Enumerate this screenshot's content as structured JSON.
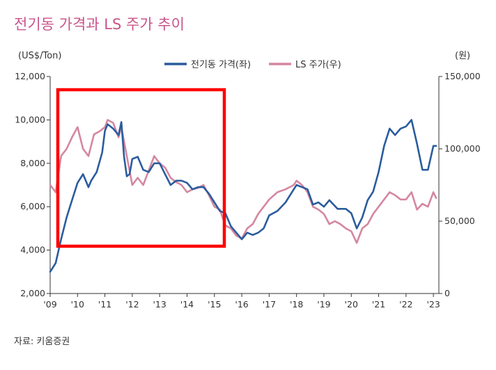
{
  "chart_data": {
    "type": "line",
    "title": "전기동 가격과 LS 주가 추이",
    "y_left_unit": "(US$/Ton)",
    "y_right_unit": "(원)",
    "source": "자료: 키움증권",
    "x_ticks": [
      "'09",
      "'10",
      "'11",
      "'12",
      "'13",
      "'14",
      "'15",
      "'16",
      "'17",
      "'18",
      "'19",
      "'20",
      "'21",
      "'22",
      "'23"
    ],
    "x_range": [
      2009.0,
      2023.2
    ],
    "y_left_ticks": [
      "2,000",
      "4,000",
      "6,000",
      "8,000",
      "10,000",
      "12,000"
    ],
    "y_left_range": [
      2000,
      12000
    ],
    "y_right_ticks": [
      "0",
      "50,000",
      "100,000",
      "150,000"
    ],
    "y_right_range": [
      0,
      150000
    ],
    "legend_position": "top-center",
    "series": [
      {
        "name": "전기동 가격(좌)",
        "axis": "left",
        "color": "#2b5c9e",
        "x": [
          2009.0,
          2009.2,
          2009.4,
          2009.6,
          2009.8,
          2010.0,
          2010.2,
          2010.4,
          2010.5,
          2010.7,
          2010.9,
          2011.0,
          2011.1,
          2011.3,
          2011.5,
          2011.6,
          2011.7,
          2011.8,
          2011.9,
          2012.0,
          2012.2,
          2012.4,
          2012.6,
          2012.8,
          2013.0,
          2013.2,
          2013.4,
          2013.6,
          2013.8,
          2014.0,
          2014.2,
          2014.4,
          2014.6,
          2014.8,
          2015.0,
          2015.2,
          2015.4,
          2015.6,
          2015.8,
          2016.0,
          2016.2,
          2016.4,
          2016.6,
          2016.8,
          2017.0,
          2017.3,
          2017.6,
          2017.9,
          2018.0,
          2018.2,
          2018.4,
          2018.6,
          2018.8,
          2019.0,
          2019.2,
          2019.5,
          2019.8,
          2020.0,
          2020.2,
          2020.4,
          2020.6,
          2020.8,
          2021.0,
          2021.2,
          2021.4,
          2021.6,
          2021.8,
          2022.0,
          2022.2,
          2022.4,
          2022.6,
          2022.8,
          2023.0,
          2023.1
        ],
        "values": [
          3000,
          3400,
          4500,
          5500,
          6300,
          7100,
          7500,
          6900,
          7200,
          7600,
          8500,
          9500,
          9800,
          9600,
          9300,
          9900,
          8300,
          7400,
          7500,
          8200,
          8300,
          7700,
          7600,
          8000,
          8000,
          7500,
          7000,
          7200,
          7200,
          7100,
          6800,
          6900,
          6900,
          6600,
          6200,
          5800,
          5700,
          5100,
          4800,
          4500,
          4800,
          4700,
          4800,
          5000,
          5600,
          5800,
          6200,
          6800,
          7000,
          6900,
          6800,
          6100,
          6200,
          6000,
          6300,
          5900,
          5900,
          5700,
          5000,
          5500,
          6300,
          6700,
          7600,
          8800,
          9600,
          9300,
          9600,
          9700,
          10000,
          8900,
          7700,
          7700,
          8800,
          8800
        ]
      },
      {
        "name": "LS 주가(우)",
        "axis": "right",
        "color": "#d4879f",
        "x": [
          2009.0,
          2009.2,
          2009.4,
          2009.6,
          2009.8,
          2010.0,
          2010.2,
          2010.4,
          2010.6,
          2010.8,
          2011.0,
          2011.1,
          2011.3,
          2011.5,
          2011.6,
          2011.8,
          2012.0,
          2012.2,
          2012.4,
          2012.6,
          2012.8,
          2013.0,
          2013.2,
          2013.4,
          2013.6,
          2013.8,
          2014.0,
          2014.2,
          2014.4,
          2014.6,
          2014.8,
          2015.0,
          2015.2,
          2015.4,
          2015.6,
          2015.8,
          2016.0,
          2016.2,
          2016.4,
          2016.6,
          2016.8,
          2017.0,
          2017.3,
          2017.6,
          2017.9,
          2018.0,
          2018.2,
          2018.4,
          2018.6,
          2018.8,
          2019.0,
          2019.2,
          2019.4,
          2019.6,
          2019.8,
          2020.0,
          2020.2,
          2020.4,
          2020.6,
          2020.8,
          2021.0,
          2021.2,
          2021.4,
          2021.6,
          2021.8,
          2022.0,
          2022.2,
          2022.4,
          2022.6,
          2022.8,
          2023.0,
          2023.1
        ],
        "values": [
          75000,
          70000,
          95000,
          100000,
          108000,
          115000,
          100000,
          95000,
          110000,
          112000,
          115000,
          120000,
          118000,
          108000,
          115000,
          95000,
          75000,
          80000,
          75000,
          85000,
          95000,
          90000,
          87000,
          80000,
          77000,
          75000,
          70000,
          72000,
          73000,
          75000,
          68000,
          60000,
          58000,
          47000,
          45000,
          40000,
          38000,
          45000,
          48000,
          55000,
          60000,
          65000,
          70000,
          72000,
          75000,
          78000,
          75000,
          70000,
          60000,
          58000,
          55000,
          48000,
          50000,
          48000,
          45000,
          43000,
          35000,
          45000,
          48000,
          55000,
          60000,
          65000,
          70000,
          68000,
          65000,
          65000,
          70000,
          58000,
          62000,
          60000,
          70000,
          66000
        ]
      }
    ]
  }
}
